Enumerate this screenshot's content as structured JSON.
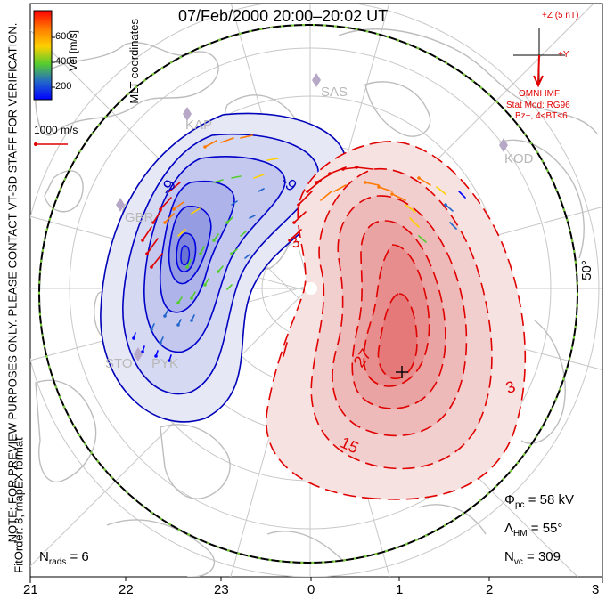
{
  "title": "07/Feb/2000 20:00–20:02 UT",
  "side_note": "NOTE: FOR PREVIEW PURPOSES ONLY. PLEASE CONTACT VT-SD STAFF FOR VERIFICATION.",
  "side_fit": "FitOrder: 8, mapEX format",
  "coords_label": "MLT coordinates",
  "colorbar": {
    "label": "Vel [m/s]",
    "ticks": [
      "600",
      "400",
      "200"
    ],
    "colors": [
      "#ff0000",
      "#ff7a00",
      "#ffd000",
      "#55cc30",
      "#2266cc",
      "#0000ff"
    ]
  },
  "vector_scale": "1000 m/s",
  "latitude_label": "50°",
  "imf": {
    "z_label": "+Z (5 nT)",
    "y_label": "+Y",
    "source": "OMNI IMF",
    "model": "Stat Mod: RG96",
    "condition": "Bz−, 4<BT<6"
  },
  "stations": [
    "SAS",
    "KOD",
    "GBR",
    "STO",
    "PYK",
    "KAP"
  ],
  "contour_labels": {
    "neg_a": "-9",
    "neg_b": "-9",
    "pos_a": "27",
    "pos_b": "15",
    "pos_c": "3",
    "pos_d": "3"
  },
  "cross_marker": "+",
  "stats": {
    "pcp_symbol": "Φ",
    "pcp_sub": "pc",
    "pcp_value": "= 58 kV",
    "hm_symbol": "Λ",
    "hm_sub": "HM",
    "hm_value": "= 55°",
    "nvc_symbol": "N",
    "nvc_sub": "vc",
    "nvc_value": "= 309",
    "nrads_symbol": "N",
    "nrads_sub": "rads",
    "nrads_value": "= 6"
  },
  "mlt_labels": [
    "21",
    "22",
    "23",
    "0",
    "1",
    "2",
    "3"
  ]
}
